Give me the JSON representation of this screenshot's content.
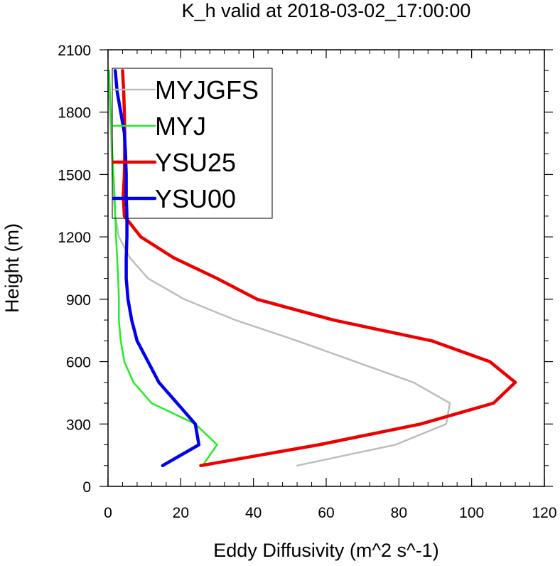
{
  "chart_data": {
    "type": "line",
    "title": "K_h valid at 2018-03-02_17:00:00",
    "xlabel": "Eddy Diffusivity (m^2 s^-1)",
    "ylabel": "Height (m)",
    "xlim": [
      0,
      120
    ],
    "ylim": [
      0,
      2100
    ],
    "xticks": [
      0,
      20,
      40,
      60,
      80,
      100,
      120
    ],
    "yticks": [
      0,
      300,
      600,
      900,
      1200,
      1500,
      1800,
      2100
    ],
    "grid": false,
    "legend": "top-left",
    "series": [
      {
        "name": "MYJGFS",
        "color": "#bdbdbd",
        "points": [
          [
            52,
            100
          ],
          [
            79,
            200
          ],
          [
            93,
            300
          ],
          [
            94,
            400
          ],
          [
            84,
            500
          ],
          [
            68,
            600
          ],
          [
            52,
            700
          ],
          [
            35,
            800
          ],
          [
            21,
            900
          ],
          [
            11,
            1000
          ],
          [
            6,
            1100
          ],
          [
            3,
            1200
          ],
          [
            2,
            1300
          ],
          [
            1.5,
            1400
          ],
          [
            1.2,
            1500
          ],
          [
            1,
            1600
          ],
          [
            0.8,
            1700
          ],
          [
            0.5,
            1800
          ],
          [
            0.3,
            1900
          ],
          [
            0.2,
            2000
          ]
        ]
      },
      {
        "name": "MYJ",
        "color": "#22ee22",
        "points": [
          [
            26,
            100
          ],
          [
            30,
            200
          ],
          [
            24,
            300
          ],
          [
            12,
            400
          ],
          [
            7,
            500
          ],
          [
            4.5,
            600
          ],
          [
            3.5,
            700
          ],
          [
            3,
            800
          ],
          [
            3,
            900
          ],
          [
            2.8,
            1000
          ],
          [
            2.5,
            1100
          ],
          [
            2.2,
            1200
          ],
          [
            2,
            1300
          ],
          [
            1.8,
            1400
          ],
          [
            1.5,
            1500
          ],
          [
            1.2,
            1600
          ],
          [
            1,
            1700
          ],
          [
            0.8,
            1800
          ],
          [
            0.5,
            1900
          ],
          [
            0.3,
            2000
          ]
        ]
      },
      {
        "name": "YSU25",
        "color": "#ee0000",
        "points": [
          [
            25.5,
            100
          ],
          [
            58,
            200
          ],
          [
            86,
            300
          ],
          [
            106,
            400
          ],
          [
            112,
            500
          ],
          [
            105,
            600
          ],
          [
            89,
            700
          ],
          [
            62,
            800
          ],
          [
            41,
            900
          ],
          [
            30,
            1000
          ],
          [
            18,
            1100
          ],
          [
            9,
            1200
          ],
          [
            4.5,
            1300
          ],
          [
            4.2,
            1400
          ],
          [
            4.5,
            1500
          ],
          [
            4.6,
            1600
          ],
          [
            4.6,
            1700
          ],
          [
            4.5,
            1800
          ],
          [
            4.3,
            1900
          ],
          [
            4,
            2000
          ]
        ]
      },
      {
        "name": "YSU00",
        "color": "#0000ee",
        "points": [
          [
            15,
            100
          ],
          [
            25,
            200
          ],
          [
            24,
            300
          ],
          [
            19,
            400
          ],
          [
            14,
            500
          ],
          [
            11,
            600
          ],
          [
            8,
            700
          ],
          [
            6.5,
            800
          ],
          [
            5.5,
            900
          ],
          [
            5,
            1000
          ],
          [
            5,
            1100
          ],
          [
            5.2,
            1200
          ],
          [
            5.2,
            1300
          ],
          [
            5,
            1400
          ],
          [
            5,
            1500
          ],
          [
            4.8,
            1600
          ],
          [
            4.5,
            1700
          ],
          [
            3.5,
            1800
          ],
          [
            2.5,
            1900
          ],
          [
            2,
            2000
          ]
        ]
      }
    ]
  }
}
